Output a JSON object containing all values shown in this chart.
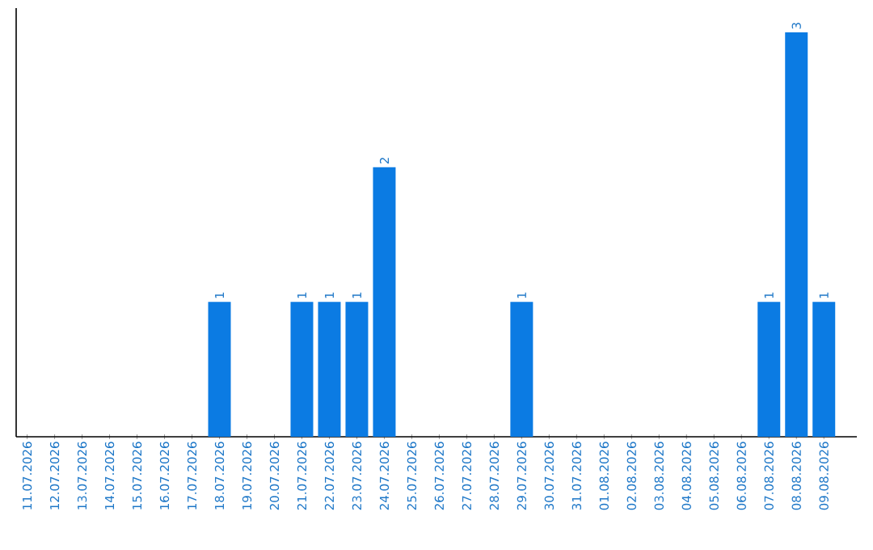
{
  "chart_data": {
    "type": "bar",
    "color": "#0b7be3",
    "categories": [
      "11.07.2026",
      "12.07.2026",
      "13.07.2026",
      "14.07.2026",
      "15.07.2026",
      "16.07.2026",
      "17.07.2026",
      "18.07.2026",
      "19.07.2026",
      "20.07.2026",
      "21.07.2026",
      "22.07.2026",
      "23.07.2026",
      "24.07.2026",
      "25.07.2026",
      "26.07.2026",
      "27.07.2026",
      "28.07.2026",
      "29.07.2026",
      "30.07.2026",
      "31.07.2026",
      "01.08.2026",
      "02.08.2026",
      "03.08.2026",
      "04.08.2026",
      "05.08.2026",
      "06.08.2026",
      "07.08.2026",
      "08.08.2026",
      "09.08.2026"
    ],
    "values": [
      0,
      0,
      0,
      0,
      0,
      0,
      0,
      1,
      0,
      0,
      1,
      1,
      1,
      2,
      0,
      0,
      0,
      0,
      1,
      0,
      0,
      0,
      0,
      0,
      0,
      0,
      0,
      1,
      3,
      1
    ],
    "value_labels": [
      null,
      null,
      null,
      null,
      null,
      null,
      null,
      "1",
      null,
      null,
      "1",
      "1",
      "1",
      "2",
      null,
      null,
      null,
      null,
      "1",
      null,
      null,
      null,
      null,
      null,
      null,
      null,
      null,
      "1",
      "3",
      "1"
    ],
    "grid": false
  }
}
